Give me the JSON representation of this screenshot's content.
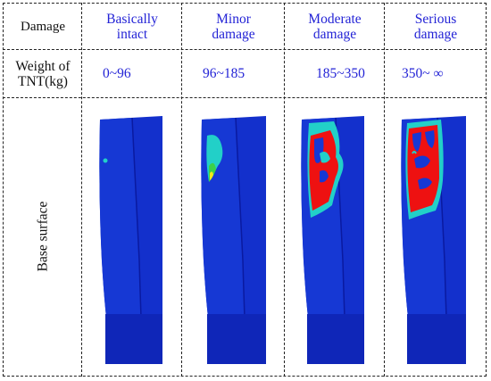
{
  "table": {
    "header_row": {
      "label": "Damage",
      "levels": [
        "Basically\nintact",
        "Minor\ndamage",
        "Moderate\ndamage",
        "Serious\ndamage"
      ]
    },
    "weight_row": {
      "label": "Weight of\nTNT(kg)",
      "ranges": [
        "0~96",
        "96~185",
        "185~350",
        "350~ ∞"
      ]
    },
    "image_row": {
      "label": "Base surface"
    }
  },
  "colors": {
    "level_text": "#2323d6",
    "model_blue": "#1330cc",
    "model_dark": "#0a1aa0",
    "damage_red": "#ee1111",
    "damage_cyan": "#22d0c8",
    "damage_green": "#3bd14a",
    "damage_yellow": "#f1e81c"
  }
}
